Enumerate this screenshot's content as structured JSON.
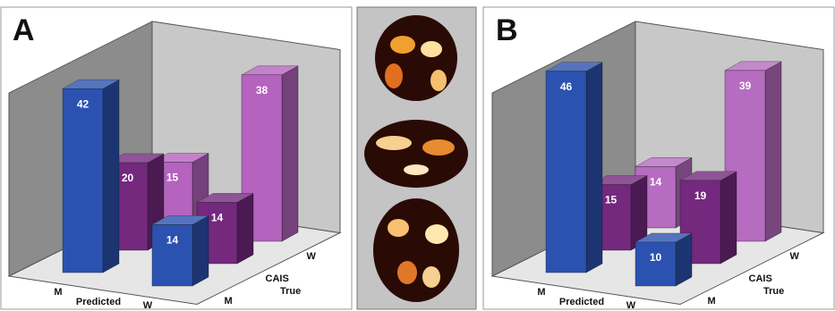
{
  "chart_data": [
    {
      "type": "bar3d",
      "panel_label": "A",
      "x_label": "Predicted",
      "y_label": "True",
      "categories": [
        "M",
        "W"
      ],
      "rows": [
        "M",
        "CAIS",
        "W"
      ],
      "series": [
        {
          "color": "#2b52b0",
          "values": [
            42,
            14
          ]
        },
        {
          "color": "#74287e",
          "values": [
            20,
            14
          ]
        },
        {
          "color": "#b463be",
          "values": [
            15,
            38
          ]
        }
      ]
    },
    {
      "type": "bar3d",
      "panel_label": "B",
      "x_label": "Predicted",
      "y_label": "True",
      "categories": [
        "M",
        "W"
      ],
      "rows": [
        "M",
        "CAIS",
        "W"
      ],
      "series": [
        {
          "color": "#2b52b0",
          "values": [
            46,
            10
          ]
        },
        {
          "color": "#74287e",
          "values": [
            15,
            19
          ]
        },
        {
          "color": "#b66cc0",
          "values": [
            14,
            39
          ]
        }
      ]
    }
  ]
}
